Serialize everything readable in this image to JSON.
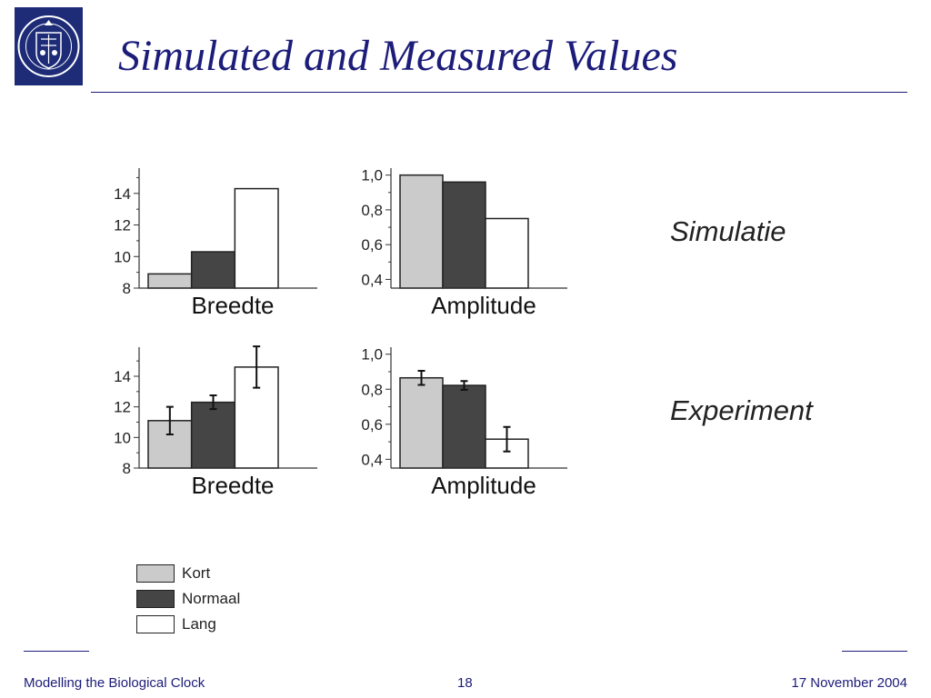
{
  "slide": {
    "title": "Simulated and Measured Values",
    "logo_icon": "university-seal-icon"
  },
  "labels": {
    "simulation": "Simulatie",
    "experiment": "Experiment"
  },
  "legend": [
    {
      "label": "Kort",
      "color": "#cbcbcb"
    },
    {
      "label": "Normaal",
      "color": "#454545"
    },
    {
      "label": "Lang",
      "color": "#ffffff"
    }
  ],
  "footer": {
    "left": "Modelling the Biological Clock",
    "center": "18",
    "right": "17 November 2004"
  },
  "colors": {
    "accent": "#1c1c7a"
  },
  "chart_data": [
    {
      "id": "sim-breedte",
      "type": "bar",
      "xlabel": "Breedte",
      "categories": [
        "Kort",
        "Normaal",
        "Lang"
      ],
      "values": [
        8.9,
        10.3,
        14.3
      ],
      "ylim": [
        8,
        15.6
      ],
      "yticks": [
        8,
        10,
        12,
        14
      ],
      "tick_labels": [
        "8",
        "10",
        "12",
        "14"
      ],
      "colors": [
        "#cbcbcb",
        "#454545",
        "#ffffff"
      ]
    },
    {
      "id": "sim-amplitude",
      "type": "bar",
      "xlabel": "Amplitude",
      "categories": [
        "Kort",
        "Normaal",
        "Lang"
      ],
      "values": [
        1.0,
        0.96,
        0.75
      ],
      "ylim": [
        0.35,
        1.04
      ],
      "yticks": [
        0.4,
        0.6,
        0.8,
        1.0
      ],
      "tick_labels": [
        "0,4",
        "0,6",
        "0,8",
        "1,0"
      ],
      "colors": [
        "#cbcbcb",
        "#454545",
        "#ffffff"
      ]
    },
    {
      "id": "exp-breedte",
      "type": "bar",
      "xlabel": "Breedte",
      "categories": [
        "Kort",
        "Normaal",
        "Lang"
      ],
      "values": [
        11.1,
        12.3,
        14.6
      ],
      "errors": [
        0.9,
        0.45,
        1.35
      ],
      "ylim": [
        8,
        15.9
      ],
      "yticks": [
        8,
        10,
        12,
        14
      ],
      "tick_labels": [
        "8",
        "10",
        "12",
        "14"
      ],
      "colors": [
        "#cbcbcb",
        "#454545",
        "#ffffff"
      ]
    },
    {
      "id": "exp-amplitude",
      "type": "bar",
      "xlabel": "Amplitude",
      "categories": [
        "Kort",
        "Normaal",
        "Lang"
      ],
      "values": [
        0.865,
        0.822,
        0.515
      ],
      "errors": [
        0.04,
        0.025,
        0.07
      ],
      "ylim": [
        0.35,
        1.04
      ],
      "yticks": [
        0.4,
        0.6,
        0.8,
        1.0
      ],
      "tick_labels": [
        "0,4",
        "0,6",
        "0,8",
        "1,0"
      ],
      "colors": [
        "#cbcbcb",
        "#454545",
        "#ffffff"
      ]
    }
  ]
}
